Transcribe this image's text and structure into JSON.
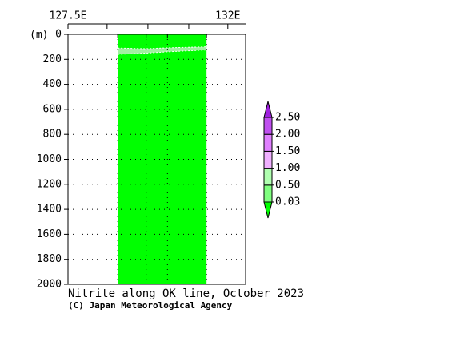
{
  "chart_data": {
    "type": "section",
    "title": "Nitrite along OK line, October 2023",
    "credit": "(C) Japan Meteorological Agency",
    "y_label": "(m)",
    "xlim": [
      127.5,
      132.5
    ],
    "xticks": [
      {
        "value": 127.5,
        "label": "127.5E"
      },
      {
        "value": 132,
        "label": "132E"
      }
    ],
    "xminorticks": [
      128.6,
      129.75,
      130.9
    ],
    "ylim": [
      0,
      2000
    ],
    "yticks": [
      0,
      200,
      400,
      600,
      800,
      1000,
      1200,
      1400,
      1600,
      1800,
      2000
    ],
    "grid": true,
    "stations": [
      128.9,
      129.7,
      130.3,
      131.4
    ],
    "base_color": "#00ff00",
    "band": {
      "color": "#a0f0a0",
      "x": [
        128.9,
        129.7,
        130.3,
        131.4
      ],
      "top": [
        110,
        115,
        108,
        100
      ],
      "bottom": [
        160,
        150,
        140,
        125
      ]
    },
    "colorbar": {
      "levels": [
        {
          "value": 0.03,
          "label": "0.03"
        },
        {
          "value": 0.5,
          "label": "0.50"
        },
        {
          "value": 1.0,
          "label": "1.00"
        },
        {
          "value": 1.5,
          "label": "1.50"
        },
        {
          "value": 2.0,
          "label": "2.00"
        },
        {
          "value": 2.5,
          "label": "2.50"
        }
      ],
      "colors": [
        "#00ff00",
        "#80ff80",
        "#b0ffb0",
        "#f0b0ff",
        "#e080ff",
        "#c050f0",
        "#a020e0"
      ]
    }
  }
}
